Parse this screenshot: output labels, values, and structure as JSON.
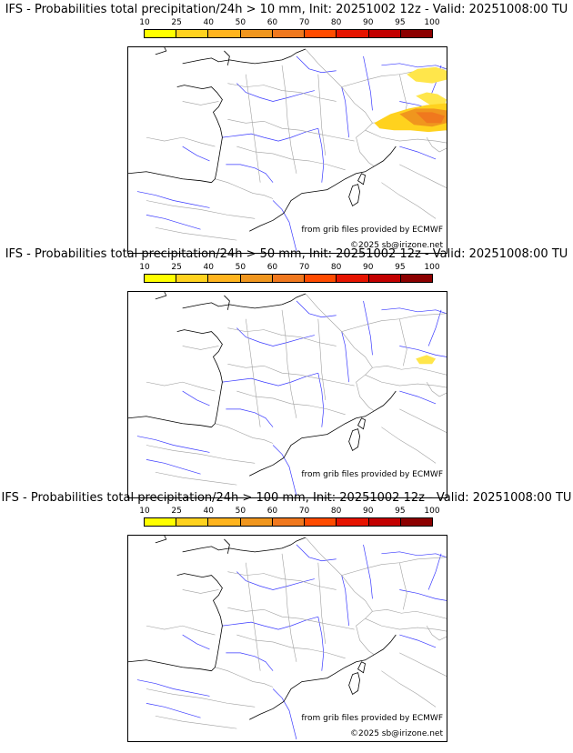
{
  "colorbar": {
    "ticks": [
      "10",
      "25",
      "40",
      "50",
      "60",
      "70",
      "80",
      "90",
      "95",
      "100"
    ],
    "colors": [
      "#ffff00",
      "#ffd21e",
      "#ffb41e",
      "#f0961e",
      "#f0781e",
      "#ff4b00",
      "#e61400",
      "#c30000",
      "#8c0000"
    ]
  },
  "credits": {
    "source": "from grib files provided by ECMWF",
    "copyright": "©2025 sb@irizone.net"
  },
  "panels": [
    {
      "title": "IFS - Probabilities total precipitation/24h > 10 mm, Init: 20251002 12z - Valid: 20251008:00 TU",
      "show_copyright": true,
      "precip_level": "high"
    },
    {
      "title": "IFS - Probabilities total precipitation/24h > 50 mm, Init: 20251002 12z - Valid: 20251008:00 TU",
      "show_copyright": false,
      "precip_level": "low"
    },
    {
      "title": "IFS - Probabilities total precipitation/24h > 100 mm, Init: 20251002 12z - Valid: 20251008:00 TU",
      "show_copyright": true,
      "precip_level": "none"
    }
  ]
}
